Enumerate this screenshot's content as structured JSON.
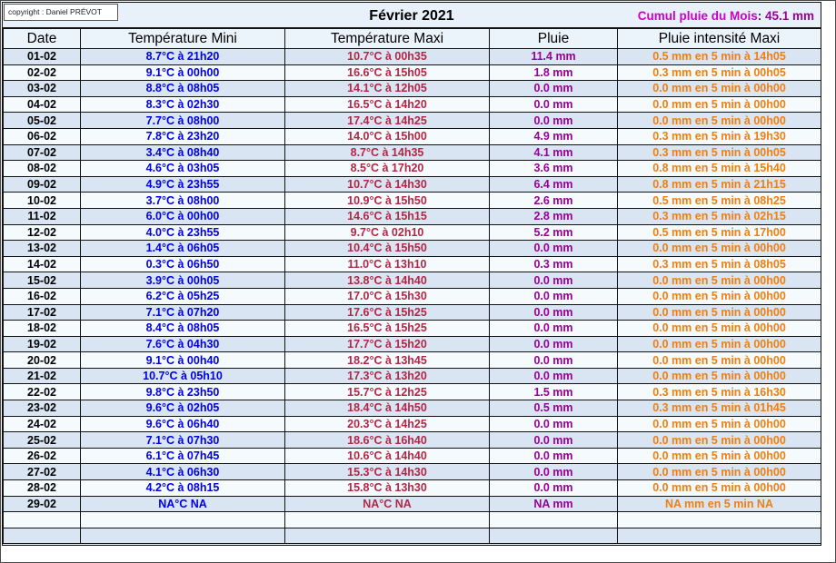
{
  "meta": {
    "copyright": "copyright : Daniel PRÉVOT"
  },
  "header": {
    "title": "Février 2021",
    "cumul_label": "Cumul pluie du Mois",
    "cumul_separator": ": ",
    "cumul_value": "45.1 mm"
  },
  "colors": {
    "temp_mini": "#0000e6",
    "temp_maxi": "#b32745",
    "pluie": "#990099",
    "intensite": "#ef7f10",
    "cumul_label": "#cc00cc",
    "cumul_value": "#990099",
    "row_odd_bg": "#d9e5f2",
    "row_even_bg": "#f5fafd"
  },
  "table": {
    "columns": [
      "Date",
      "Température Mini",
      "Température Maxi",
      "Pluie",
      "Pluie intensité Maxi"
    ],
    "rows": [
      {
        "date": "01-02",
        "tmin": "8.7°C à 21h20",
        "tmax": "10.7°C à 00h35",
        "pluie": "11.4 mm",
        "intensite": "0.5 mm en 5 min à 14h05"
      },
      {
        "date": "02-02",
        "tmin": "9.1°C à 00h00",
        "tmax": "16.6°C à 15h05",
        "pluie": "1.8 mm",
        "intensite": "0.3 mm en 5 min à 00h05"
      },
      {
        "date": "03-02",
        "tmin": "8.8°C à 08h05",
        "tmax": "14.1°C à 12h05",
        "pluie": "0.0 mm",
        "intensite": "0.0 mm en 5 min à 00h00"
      },
      {
        "date": "04-02",
        "tmin": "8.3°C à 02h30",
        "tmax": "16.5°C à 14h20",
        "pluie": "0.0 mm",
        "intensite": "0.0 mm en 5 min à 00h00"
      },
      {
        "date": "05-02",
        "tmin": "7.7°C à 08h00",
        "tmax": "17.4°C à 14h25",
        "pluie": "0.0 mm",
        "intensite": "0.0 mm en 5 min à 00h00"
      },
      {
        "date": "06-02",
        "tmin": "7.8°C à 23h20",
        "tmax": "14.0°C à 15h00",
        "pluie": "4.9 mm",
        "intensite": "0.3 mm en 5 min à 19h30"
      },
      {
        "date": "07-02",
        "tmin": "3.4°C à 08h40",
        "tmax": "8.7°C à 14h35",
        "pluie": "4.1 mm",
        "intensite": "0.3 mm en 5 min à 00h05"
      },
      {
        "date": "08-02",
        "tmin": "4.6°C à 03h05",
        "tmax": "8.5°C à 17h20",
        "pluie": "3.6 mm",
        "intensite": "0.8 mm en 5 min à 15h40"
      },
      {
        "date": "09-02",
        "tmin": "4.9°C à 23h55",
        "tmax": "10.7°C à 14h30",
        "pluie": "6.4 mm",
        "intensite": "0.8 mm en 5 min à 21h15"
      },
      {
        "date": "10-02",
        "tmin": "3.7°C à 08h00",
        "tmax": "10.9°C à 15h50",
        "pluie": "2.6 mm",
        "intensite": "0.5 mm en 5 min à 08h25"
      },
      {
        "date": "11-02",
        "tmin": "6.0°C à 00h00",
        "tmax": "14.6°C à 15h15",
        "pluie": "2.8 mm",
        "intensite": "0.3 mm en 5 min à 02h15"
      },
      {
        "date": "12-02",
        "tmin": "4.0°C à 23h55",
        "tmax": "9.7°C à 02h10",
        "pluie": "5.2 mm",
        "intensite": "0.5 mm en 5 min à 17h00"
      },
      {
        "date": "13-02",
        "tmin": "1.4°C à 06h05",
        "tmax": "10.4°C à 15h50",
        "pluie": "0.0 mm",
        "intensite": "0.0 mm en 5 min à 00h00"
      },
      {
        "date": "14-02",
        "tmin": "0.3°C à 06h50",
        "tmax": "11.0°C à 13h10",
        "pluie": "0.3 mm",
        "intensite": "0.3 mm en 5 min à 08h05"
      },
      {
        "date": "15-02",
        "tmin": "3.9°C à 00h05",
        "tmax": "13.8°C à 14h40",
        "pluie": "0.0 mm",
        "intensite": "0.0 mm en 5 min à 00h00"
      },
      {
        "date": "16-02",
        "tmin": "6.2°C à 05h25",
        "tmax": "17.0°C à 15h30",
        "pluie": "0.0 mm",
        "intensite": "0.0 mm en 5 min à 00h00"
      },
      {
        "date": "17-02",
        "tmin": "7.1°C à 07h20",
        "tmax": "17.6°C à 15h25",
        "pluie": "0.0 mm",
        "intensite": "0.0 mm en 5 min à 00h00"
      },
      {
        "date": "18-02",
        "tmin": "8.4°C à 08h05",
        "tmax": "16.5°C à 15h25",
        "pluie": "0.0 mm",
        "intensite": "0.0 mm en 5 min à 00h00"
      },
      {
        "date": "19-02",
        "tmin": "7.6°C à 04h30",
        "tmax": "17.7°C à 15h20",
        "pluie": "0.0 mm",
        "intensite": "0.0 mm en 5 min à 00h00"
      },
      {
        "date": "20-02",
        "tmin": "9.1°C à 00h40",
        "tmax": "18.2°C à 13h45",
        "pluie": "0.0 mm",
        "intensite": "0.0 mm en 5 min à 00h00"
      },
      {
        "date": "21-02",
        "tmin": "10.7°C à 05h10",
        "tmax": "17.3°C à 13h20",
        "pluie": "0.0 mm",
        "intensite": "0.0 mm en 5 min à 00h00"
      },
      {
        "date": "22-02",
        "tmin": "9.8°C à 23h50",
        "tmax": "15.7°C à 12h25",
        "pluie": "1.5 mm",
        "intensite": "0.3 mm en 5 min à 16h30"
      },
      {
        "date": "23-02",
        "tmin": "9.6°C à 02h05",
        "tmax": "18.4°C à 14h50",
        "pluie": "0.5 mm",
        "intensite": "0.3 mm en 5 min à 01h45"
      },
      {
        "date": "24-02",
        "tmin": "9.6°C à 06h40",
        "tmax": "20.3°C à 14h25",
        "pluie": "0.0 mm",
        "intensite": "0.0 mm en 5 min à 00h00"
      },
      {
        "date": "25-02",
        "tmin": "7.1°C à 07h30",
        "tmax": "18.6°C à 16h40",
        "pluie": "0.0 mm",
        "intensite": "0.0 mm en 5 min à 00h00"
      },
      {
        "date": "26-02",
        "tmin": "6.1°C à 07h45",
        "tmax": "10.6°C à 14h40",
        "pluie": "0.0 mm",
        "intensite": "0.0 mm en 5 min à 00h00"
      },
      {
        "date": "27-02",
        "tmin": "4.1°C à 06h30",
        "tmax": "15.3°C à 14h30",
        "pluie": "0.0 mm",
        "intensite": "0.0 mm en 5 min à 00h00"
      },
      {
        "date": "28-02",
        "tmin": "4.2°C à 08h15",
        "tmax": "15.8°C à 13h30",
        "pluie": "0.0 mm",
        "intensite": "0.0 mm en 5 min à 00h00"
      },
      {
        "date": "29-02",
        "tmin": "NA°C NA",
        "tmax": "NA°C NA",
        "pluie": "NA mm",
        "intensite": "NA mm en 5 min NA"
      },
      {
        "date": "",
        "tmin": "",
        "tmax": "",
        "pluie": "",
        "intensite": ""
      },
      {
        "date": "",
        "tmin": "",
        "tmax": "",
        "pluie": "",
        "intensite": ""
      }
    ]
  }
}
